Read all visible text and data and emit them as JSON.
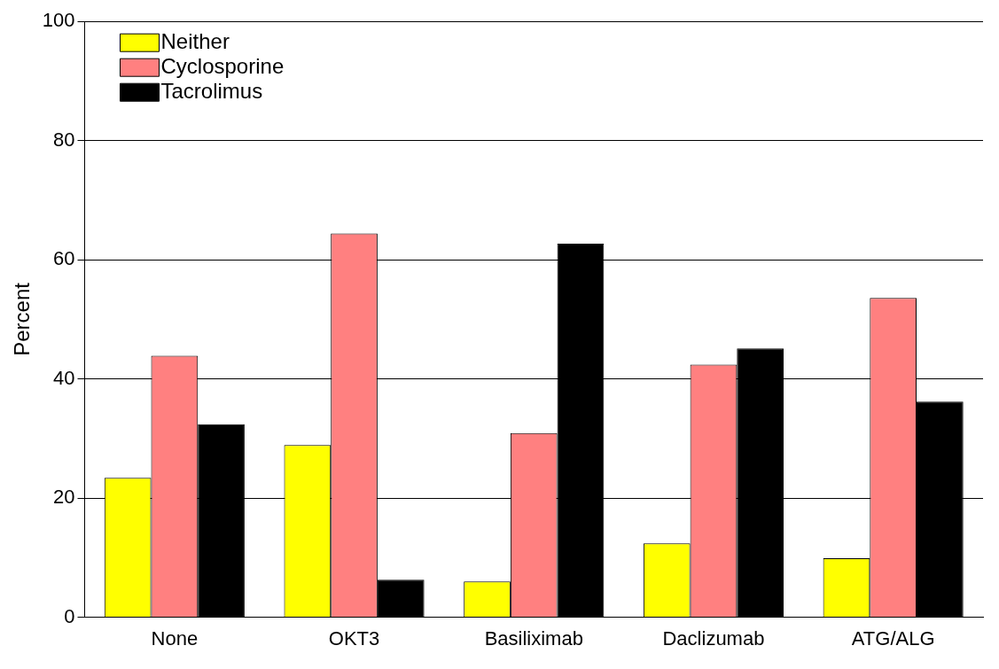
{
  "chart_data": {
    "type": "bar",
    "ylabel": "Percent",
    "categories": [
      "None",
      "OKT3",
      "Basiliximab",
      "Daclizumab",
      "ATG/ALG"
    ],
    "series": [
      {
        "name": "Neither",
        "color": "#ffff00",
        "values": [
          23.4,
          28.9,
          6.0,
          12.4,
          9.9
        ]
      },
      {
        "name": "Cyclosporine",
        "color": "#ff8080",
        "values": [
          43.9,
          64.4,
          30.9,
          42.4,
          53.6
        ]
      },
      {
        "name": "Tacrolimus",
        "color": "#000000",
        "values": [
          32.4,
          6.3,
          62.7,
          45.1,
          36.2
        ]
      }
    ],
    "ylim": [
      0,
      100
    ],
    "yticks": [
      0,
      20,
      40,
      60,
      80,
      100
    ],
    "grid": "y",
    "legend": "top left"
  }
}
